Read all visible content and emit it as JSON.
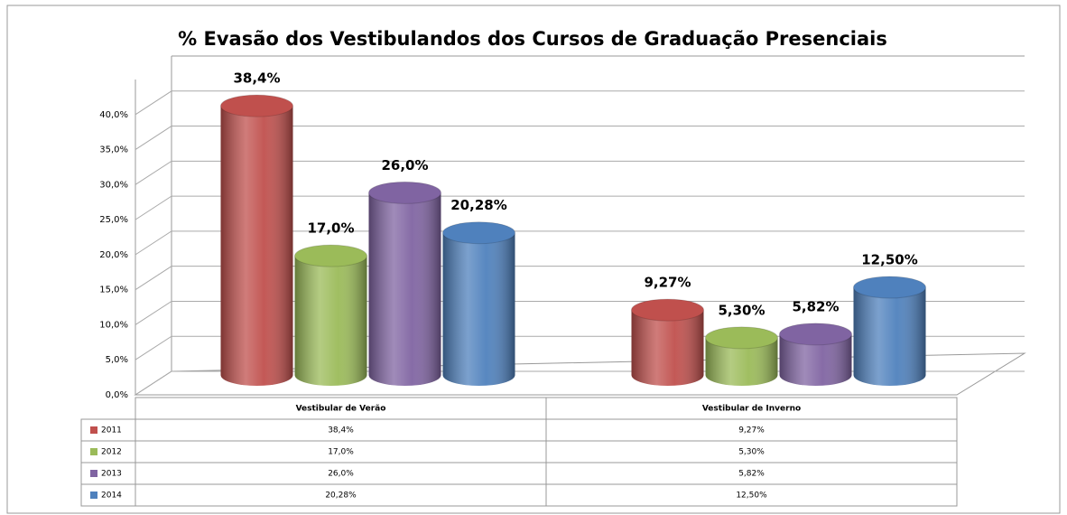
{
  "chart_data": {
    "type": "bar",
    "title": "% Evasão dos Vestibulandos  dos Cursos de Graduação Presenciais",
    "categories": [
      "Vestibular de Verão",
      "Vestibular de Inverno"
    ],
    "series": [
      {
        "name": "2011",
        "color": "#c0504d",
        "values": [
          38.4,
          9.27
        ],
        "value_labels": [
          "38,4%",
          "9,27%"
        ]
      },
      {
        "name": "2012",
        "color": "#9bbb59",
        "values": [
          17.0,
          5.3
        ],
        "value_labels": [
          "17,0%",
          "5,30%"
        ]
      },
      {
        "name": "2013",
        "color": "#8064a2",
        "values": [
          26.0,
          5.82
        ],
        "value_labels": [
          "26,0%",
          "5,82%"
        ]
      },
      {
        "name": "2014",
        "color": "#4f81bd",
        "values": [
          20.28,
          12.5
        ],
        "value_labels": [
          "20,28%",
          "12,50%"
        ]
      }
    ],
    "ylim": [
      0,
      45
    ],
    "yticks": [
      {
        "value": 0,
        "label": "0,0%"
      },
      {
        "value": 5,
        "label": "5,0%"
      },
      {
        "value": 10,
        "label": "10,0%"
      },
      {
        "value": 15,
        "label": "15,0%"
      },
      {
        "value": 20,
        "label": "20,0%"
      },
      {
        "value": 25,
        "label": "25,0%"
      },
      {
        "value": 30,
        "label": "30,0%"
      },
      {
        "value": 35,
        "label": "35,0%"
      },
      {
        "value": 40,
        "label": "40,0%"
      }
    ],
    "grid": true
  }
}
